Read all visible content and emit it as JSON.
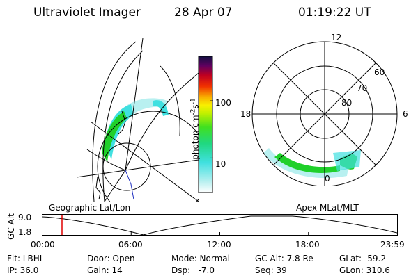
{
  "header": {
    "instrument": "Ultraviolet Imager",
    "date": "28 Apr 07",
    "time": "01:19:22 UT"
  },
  "colorbar": {
    "label": "photon cm",
    "label_sup1": "-2",
    "label_mid": "s",
    "label_sup2": "-1",
    "ticks": [
      {
        "value": 100,
        "label": "100"
      },
      {
        "value": 10,
        "label": "10"
      }
    ],
    "scale": "log"
  },
  "polar_plot": {
    "mlt_labels": {
      "top": "12",
      "left": "18",
      "right": "6",
      "bottom": "0"
    },
    "mlat_labels": [
      "60",
      "70",
      "80"
    ]
  },
  "timeline": {
    "left_title": "Geographic Lat/Lon",
    "right_title": "Apex MLat/MLT",
    "y_label": "GC Alt",
    "y_ticks": [
      "9.0",
      "1.8"
    ],
    "x_ticks": [
      "00:00",
      "06:00",
      "12:00",
      "18:00",
      "23:59"
    ],
    "current_time_fraction": 0.055
  },
  "footer": {
    "flt": "Flt: LBHL",
    "ip": "IP: 36.0",
    "door": "Door: Open",
    "gain": "Gain: 14",
    "mode": "Mode: Normal",
    "dsp": "Dsp:   -7.0",
    "gcalt": "GC Alt: 7.8 Re",
    "seq": "Seq: 39",
    "glat": "GLat: -59.2",
    "glon": "GLon: 310.6"
  },
  "colors": {
    "aurora_green": "#1fd02a",
    "aurora_cyan": "#40e0e0",
    "aurora_pale": "#b8f0f0",
    "marker_red": "#e00000"
  }
}
